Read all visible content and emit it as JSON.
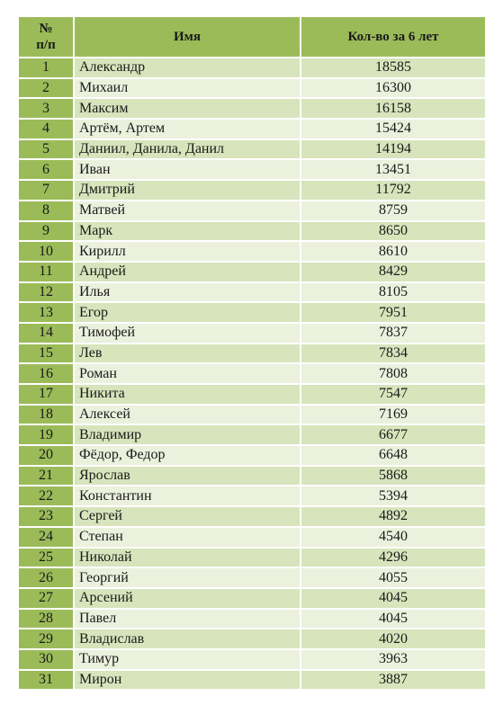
{
  "header": {
    "num_line1": "№",
    "num_line2": "п/п",
    "name": "Имя",
    "count": "Кол-во за 6 лет"
  },
  "rows": [
    {
      "n": "1",
      "name": "Александр",
      "count": "18585"
    },
    {
      "n": "2",
      "name": "Михаил",
      "count": "16300"
    },
    {
      "n": "3",
      "name": "Максим",
      "count": "16158"
    },
    {
      "n": "4",
      "name": "Артём, Артем",
      "count": "15424"
    },
    {
      "n": "5",
      "name": "Даниил, Данила, Данил",
      "count": "14194"
    },
    {
      "n": "6",
      "name": "Иван",
      "count": "13451"
    },
    {
      "n": "7",
      "name": "Дмитрий",
      "count": "11792"
    },
    {
      "n": "8",
      "name": "Матвей",
      "count": "8759"
    },
    {
      "n": "9",
      "name": "Марк",
      "count": "8650"
    },
    {
      "n": "10",
      "name": "Кирилл",
      "count": "8610"
    },
    {
      "n": "11",
      "name": "Андрей",
      "count": "8429"
    },
    {
      "n": "12",
      "name": "Илья",
      "count": "8105"
    },
    {
      "n": "13",
      "name": "Егор",
      "count": "7951"
    },
    {
      "n": "14",
      "name": "Тимофей",
      "count": "7837"
    },
    {
      "n": "15",
      "name": "Лев",
      "count": "7834"
    },
    {
      "n": "16",
      "name": "Роман",
      "count": "7808"
    },
    {
      "n": "17",
      "name": "Никита",
      "count": "7547"
    },
    {
      "n": "18",
      "name": "Алексей",
      "count": "7169"
    },
    {
      "n": "19",
      "name": "Владимир",
      "count": "6677"
    },
    {
      "n": "20",
      "name": "Фёдор, Федор",
      "count": "6648"
    },
    {
      "n": "21",
      "name": "Ярослав",
      "count": "5868"
    },
    {
      "n": "22",
      "name": "Константин",
      "count": "5394"
    },
    {
      "n": "23",
      "name": "Сергей",
      "count": "4892"
    },
    {
      "n": "24",
      "name": "Степан",
      "count": "4540"
    },
    {
      "n": "25",
      "name": "Николай",
      "count": "4296"
    },
    {
      "n": "26",
      "name": "Георгий",
      "count": "4055"
    },
    {
      "n": "27",
      "name": "Арсений",
      "count": "4045"
    },
    {
      "n": "28",
      "name": "Павел",
      "count": "4045"
    },
    {
      "n": "29",
      "name": "Владислав",
      "count": "4020"
    },
    {
      "n": "30",
      "name": "Тимур",
      "count": "3963"
    },
    {
      "n": "31",
      "name": "Мирон",
      "count": "3887"
    }
  ],
  "colors": {
    "header_bg": "#9bbb59",
    "row_odd_bg": "#d7e4bc",
    "row_even_bg": "#ebf1dd"
  }
}
